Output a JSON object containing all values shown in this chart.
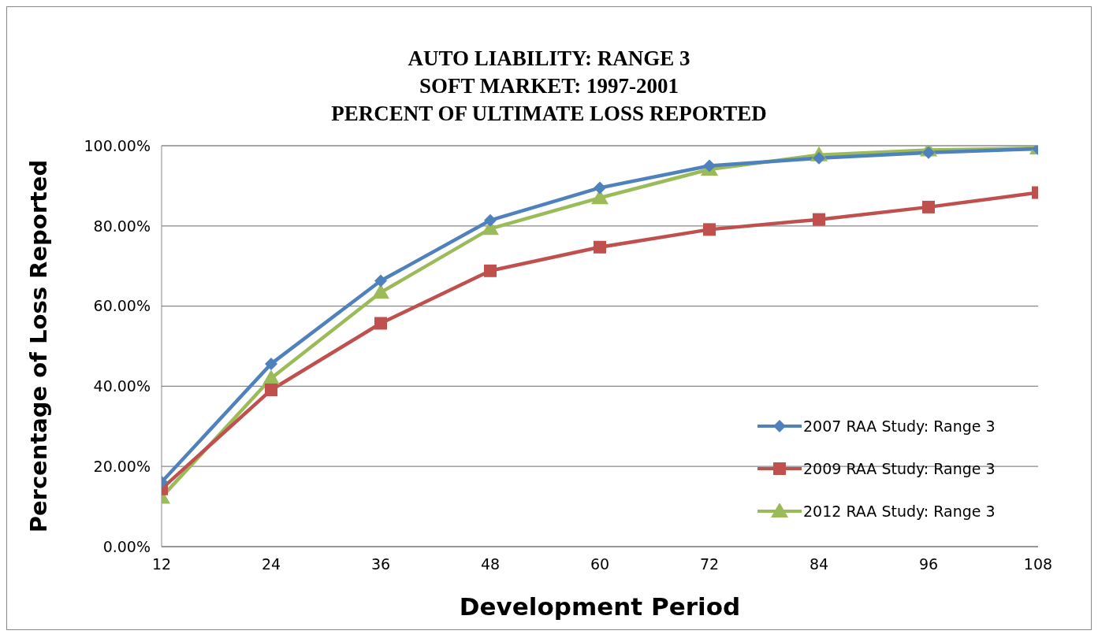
{
  "chart_data": {
    "type": "line",
    "title": "AUTO LIABILITY: RANGE 3\nSOFT MARKET: 1997-2001\nPERCENT OF ULTIMATE LOSS REPORTED",
    "xlabel": "Development Period",
    "ylabel": "Percentage of Loss Reported",
    "x": [
      12,
      24,
      36,
      48,
      60,
      72,
      84,
      96,
      108
    ],
    "series": [
      {
        "name": "2007 RAA Study: Range 3",
        "color": "#4f81bd",
        "marker": "diamond",
        "values": [
          16.1,
          45.6,
          66.3,
          81.4,
          89.5,
          95.0,
          96.9,
          98.3,
          99.2
        ]
      },
      {
        "name": "2009 RAA Study: Range 3",
        "color": "#c0504d",
        "marker": "square",
        "values": [
          14.4,
          39.1,
          55.7,
          68.8,
          74.7,
          79.1,
          81.6,
          84.7,
          88.3
        ]
      },
      {
        "name": "2012 RAA Study: Range 3",
        "color": "#9bbb59",
        "marker": "triangle",
        "values": [
          12.3,
          42.0,
          63.4,
          79.3,
          87.0,
          94.1,
          97.7,
          98.9,
          99.4
        ]
      }
    ],
    "xlim": [
      12,
      108
    ],
    "xticks": [
      12,
      24,
      36,
      48,
      60,
      72,
      84,
      96,
      108
    ],
    "ylim": [
      0,
      100
    ],
    "yticks": [
      {
        "value": 0,
        "label": "0.00%"
      },
      {
        "value": 20,
        "label": "20.00%"
      },
      {
        "value": 40,
        "label": "40.00%"
      },
      {
        "value": 60,
        "label": "60.00%"
      },
      {
        "value": 80,
        "label": "80.00%"
      },
      {
        "value": 100,
        "label": "100.00%"
      }
    ],
    "grid": "y",
    "legend": "bottom right",
    "line_style": "solid"
  }
}
